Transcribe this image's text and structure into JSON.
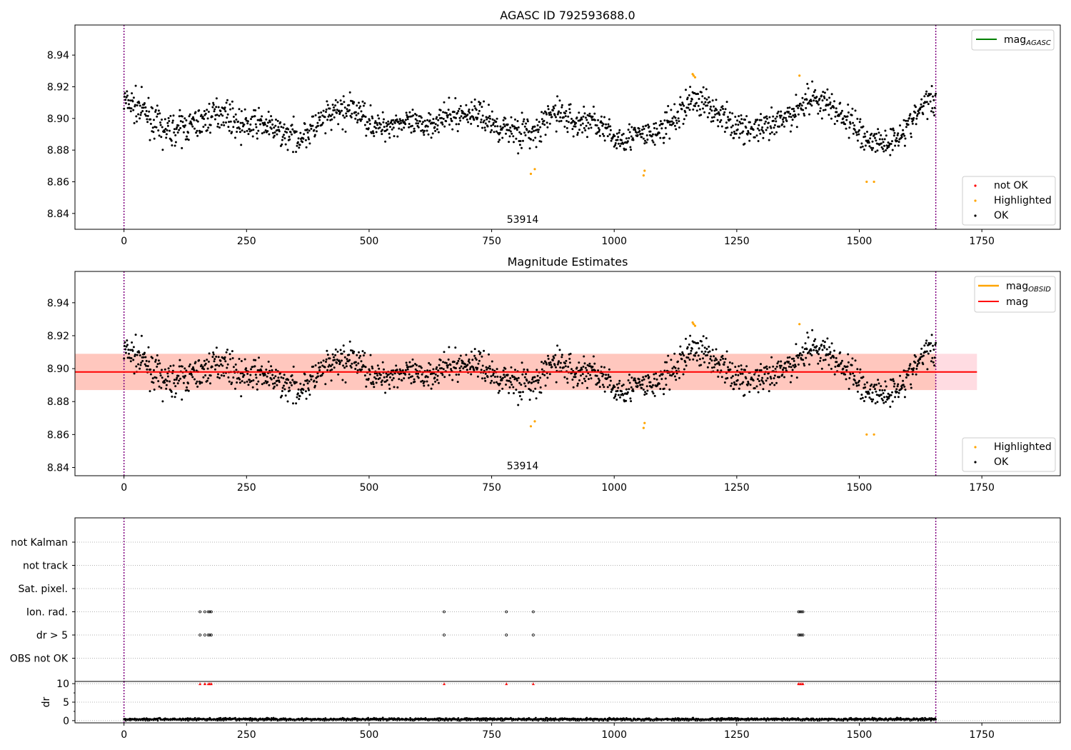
{
  "figure": {
    "top_title": "AGASC ID 792593688.0",
    "middle_title": "Magnitude Estimates",
    "observation_label": "53914"
  },
  "colors": {
    "ok": "#000000",
    "highlighted": "#ffa500",
    "not_ok": "#ff0000",
    "mag_agasc": "#008000",
    "mag_obsid": "#ffa500",
    "mag": "#ff0000",
    "band_outer": "#ffc0cb",
    "band_inner": "#ffa07a",
    "obs_boundary": "#800080"
  },
  "chart_data": [
    {
      "id": "agasc",
      "type": "scatter",
      "title": "AGASC ID 792593688.0",
      "xlim": [
        -100,
        1910
      ],
      "ylim": [
        8.83,
        8.959
      ],
      "xticks": [
        0,
        250,
        500,
        750,
        1000,
        1250,
        1500,
        1750
      ],
      "yticks": [
        8.84,
        8.86,
        8.88,
        8.9,
        8.92,
        8.94
      ],
      "observation": {
        "label": "53914",
        "start": 0,
        "end": 1656
      },
      "ok_trend": {
        "x": [
          0,
          40,
          80,
          120,
          160,
          200,
          240,
          280,
          320,
          360,
          400,
          440,
          480,
          520,
          560,
          600,
          640,
          680,
          720,
          760,
          800,
          840,
          880,
          920,
          960,
          1000,
          1040,
          1080,
          1120,
          1160,
          1200,
          1240,
          1280,
          1320,
          1360,
          1400,
          1440,
          1480,
          1520,
          1560,
          1600,
          1640,
          1656
        ],
        "y": [
          8.911,
          8.905,
          8.892,
          8.894,
          8.898,
          8.905,
          8.895,
          8.897,
          8.891,
          8.888,
          8.897,
          8.905,
          8.904,
          8.894,
          8.898,
          8.895,
          8.899,
          8.902,
          8.904,
          8.895,
          8.893,
          8.89,
          8.905,
          8.897,
          8.899,
          8.887,
          8.889,
          8.89,
          8.898,
          8.913,
          8.907,
          8.896,
          8.893,
          8.894,
          8.902,
          8.914,
          8.908,
          8.898,
          8.886,
          8.885,
          8.895,
          8.912,
          8.91
        ],
        "spread": [
          0.009,
          0.009,
          0.009,
          0.009,
          0.009,
          0.008,
          0.009,
          0.008,
          0.008,
          0.008,
          0.009,
          0.01,
          0.009,
          0.008,
          0.008,
          0.008,
          0.008,
          0.008,
          0.008,
          0.008,
          0.01,
          0.009,
          0.01,
          0.009,
          0.008,
          0.008,
          0.008,
          0.008,
          0.01,
          0.009,
          0.009,
          0.008,
          0.008,
          0.009,
          0.009,
          0.009,
          0.009,
          0.01,
          0.009,
          0.008,
          0.008,
          0.008,
          0.008
        ]
      },
      "highlighted": [
        {
          "x": 830,
          "y": 8.865
        },
        {
          "x": 838,
          "y": 8.868
        },
        {
          "x": 1060,
          "y": 8.864
        },
        {
          "x": 1062,
          "y": 8.867
        },
        {
          "x": 1160,
          "y": 8.928
        },
        {
          "x": 1162,
          "y": 8.927
        },
        {
          "x": 1165,
          "y": 8.926
        },
        {
          "x": 1378,
          "y": 8.927
        },
        {
          "x": 1515,
          "y": 8.86
        },
        {
          "x": 1530,
          "y": 8.86
        }
      ],
      "not_ok": [],
      "lines": [
        {
          "name": "mag_AGASC",
          "y": null
        }
      ],
      "legend_lines": {
        "entries": [
          "mag",
          "AGASC"
        ],
        "placement": "upper right"
      },
      "legend_points": {
        "entries": [
          "not OK",
          "Highlighted",
          "OK"
        ],
        "placement": "lower right"
      }
    },
    {
      "id": "estimates",
      "type": "scatter",
      "title": "Magnitude Estimates",
      "xlim": [
        -100,
        1910
      ],
      "ylim": [
        8.835,
        8.959
      ],
      "xticks": [
        0,
        250,
        500,
        750,
        1000,
        1250,
        1500,
        1750
      ],
      "yticks": [
        8.84,
        8.86,
        8.88,
        8.9,
        8.92,
        8.94
      ],
      "observation": {
        "label": "53914",
        "start": 0,
        "end": 1656
      },
      "mag": 8.898,
      "mag_band_outer": [
        -100,
        1740,
        8.887,
        8.909
      ],
      "mag_band_inner": [
        -100,
        1656,
        8.887,
        8.909
      ],
      "mag_obsid_span": [
        0,
        1656
      ],
      "legend_lines": {
        "entries": [
          "mag",
          "OBSID",
          "mag"
        ],
        "placement": "upper right"
      },
      "legend_points": {
        "entries": [
          "Highlighted",
          "OK"
        ],
        "placement": "lower right"
      }
    },
    {
      "id": "flags",
      "type": "scatter",
      "xlim": [
        -100,
        1910
      ],
      "xticks": [
        0,
        250,
        500,
        750,
        1000,
        1250,
        1500,
        1750
      ],
      "categories": [
        "not Kalman",
        "not track",
        "Sat. pixel.",
        "Ion. rad.",
        "dr > 5",
        "OBS not OK"
      ],
      "flagged_x": [
        155,
        165,
        172,
        175,
        178,
        653,
        780,
        835,
        1376,
        1379,
        1382,
        1385
      ],
      "flag_rows": [
        "Ion. rad.",
        "dr > 5"
      ]
    },
    {
      "id": "dr",
      "type": "scatter",
      "ylabel": "dr",
      "xlim": [
        -100,
        1910
      ],
      "ylim": [
        -0.6,
        10.6
      ],
      "yticks": [
        0,
        5,
        10
      ],
      "xticks": [
        0,
        250,
        500,
        750,
        1000,
        1250,
        1500,
        1750
      ],
      "dr_level": 0.35,
      "dr_spread": 0.35,
      "clipped_at": 10,
      "clipped_x": [
        155,
        165,
        172,
        175,
        178,
        653,
        780,
        835,
        1376,
        1379,
        1382,
        1385
      ]
    }
  ]
}
